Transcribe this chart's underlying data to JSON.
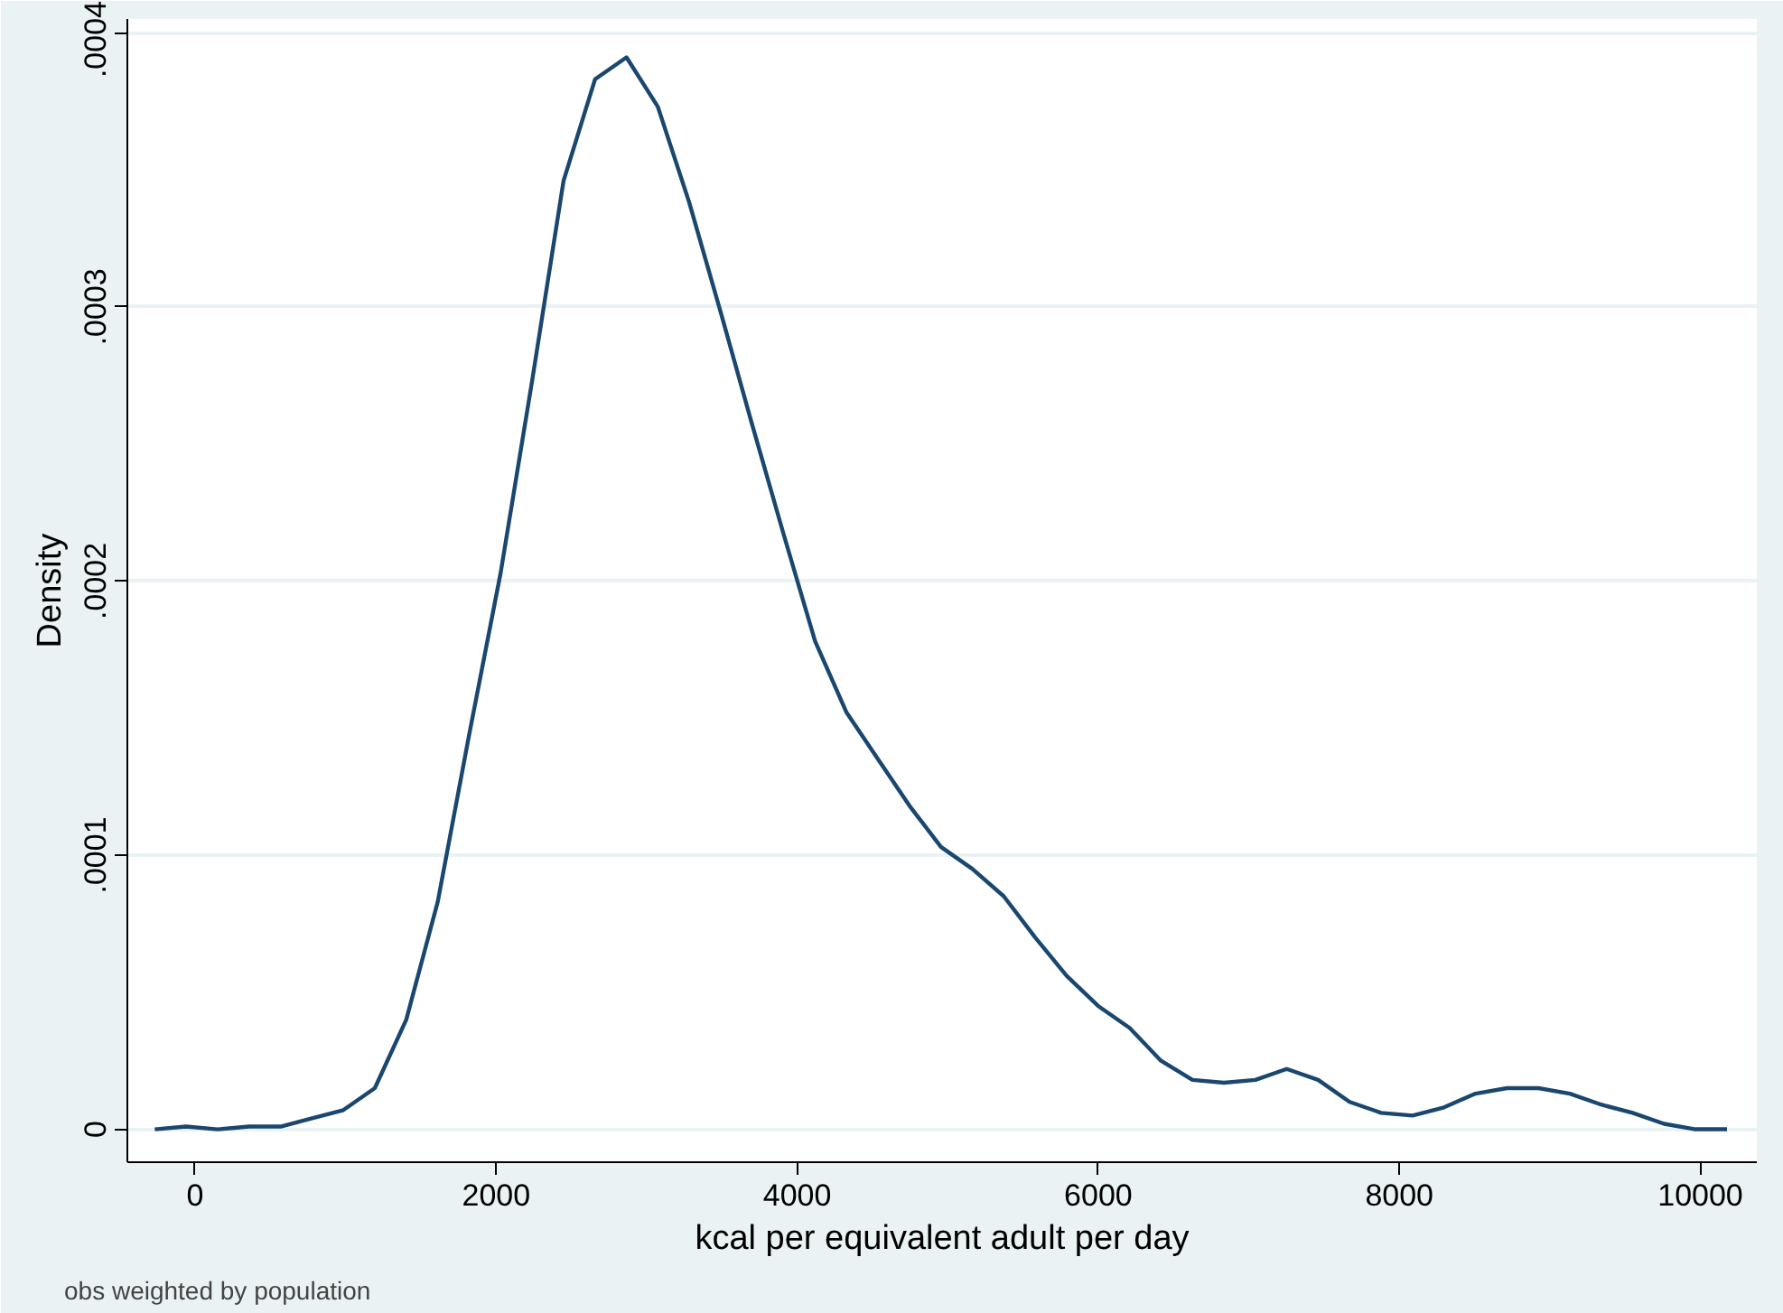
{
  "chart_data": {
    "type": "line",
    "xlabel": "kcal per equivalent adult per day",
    "ylabel": "Density",
    "annotations": [
      "obs weighted by population"
    ],
    "x": [
      -268,
      -59,
      150,
      359,
      568,
      777,
      985,
      1194,
      1403,
      1612,
      1821,
      2030,
      2239,
      2448,
      2657,
      2866,
      3074,
      3283,
      3492,
      3701,
      3910,
      4119,
      4328,
      4537,
      4746,
      4955,
      5163,
      5372,
      5581,
      5790,
      5999,
      6208,
      6417,
      6626,
      6835,
      7044,
      7252,
      7461,
      7670,
      7879,
      8088,
      8297,
      8506,
      8715,
      8924,
      9133,
      9341,
      9550,
      9759,
      9968,
      10177
    ],
    "series": [
      {
        "color": "#1a476f",
        "values": [
          0,
          1e-06,
          0,
          1e-06,
          1e-06,
          4e-06,
          7e-06,
          1.5e-05,
          4e-05,
          8.3e-05,
          0.000144,
          0.000203,
          0.000273,
          0.000346,
          0.000383,
          0.000391,
          0.000373,
          0.000338,
          0.000298,
          0.000257,
          0.000217,
          0.000178,
          0.000152,
          0.000135,
          0.000118,
          0.000103,
          9.5e-05,
          8.5e-05,
          7e-05,
          5.6e-05,
          4.5e-05,
          3.7e-05,
          2.5e-05,
          1.8e-05,
          1.7e-05,
          1.8e-05,
          2.2e-05,
          1.8e-05,
          1e-05,
          6e-06,
          5e-06,
          8e-06,
          1.3e-05,
          1.5e-05,
          1.5e-05,
          1.3e-05,
          9e-06,
          6e-06,
          2e-06,
          0,
          0
        ]
      }
    ],
    "xlim": [
      -450,
      10375
    ],
    "ylim": [
      -1.2e-05,
      0.000405
    ],
    "xticks": [
      0,
      2000,
      4000,
      6000,
      8000,
      10000
    ],
    "yticks": [
      0,
      {
        "value": 0.0001,
        "label": ".0001"
      },
      {
        "value": 0.0002,
        "label": ".0002"
      },
      {
        "value": 0.0003,
        "label": ".0003"
      },
      {
        "value": 0.0004,
        "label": ".0004"
      }
    ],
    "grid": "y",
    "marker": "none"
  }
}
